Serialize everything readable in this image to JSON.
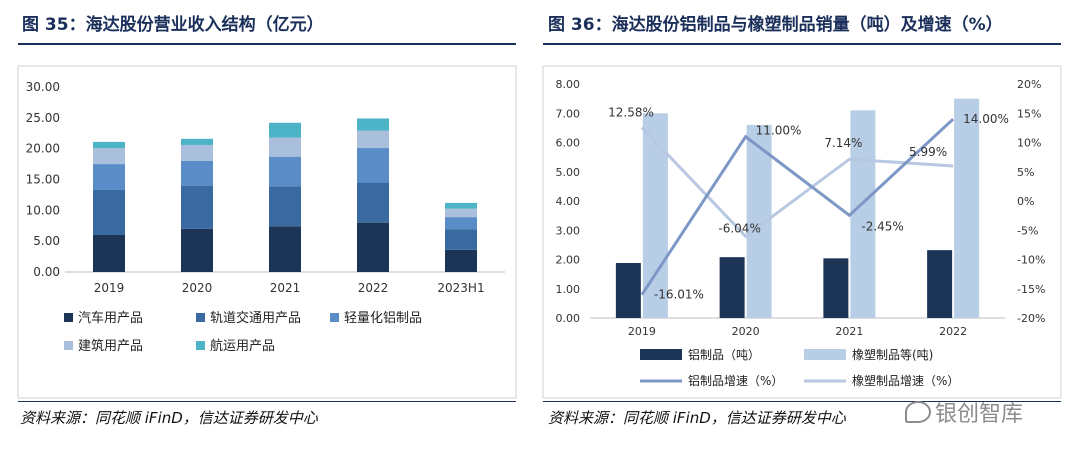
{
  "left": {
    "title": "图 35：海达股份营业收入结构（亿元）",
    "source": "资料来源：同花顺 iFinD，信达证券研发中心",
    "chart_data": {
      "type": "bar",
      "stacked": true,
      "categories": [
        "2019",
        "2020",
        "2021",
        "2022",
        "2023H1"
      ],
      "series": [
        {
          "name": "汽车用产品",
          "color": "#1c3557",
          "values": [
            6.0,
            7.0,
            7.4,
            8.0,
            3.6
          ]
        },
        {
          "name": "轨道交通用产品",
          "color": "#3a6aa0",
          "values": [
            7.3,
            7.0,
            6.5,
            6.5,
            3.3
          ]
        },
        {
          "name": "轻量化铝制品",
          "color": "#5a8cc8",
          "values": [
            4.2,
            4.0,
            4.8,
            5.6,
            2.0
          ]
        },
        {
          "name": "建筑用产品",
          "color": "#a9bfdc",
          "values": [
            2.6,
            2.6,
            3.1,
            2.8,
            1.4
          ]
        },
        {
          "name": "航运用产品",
          "color": "#4db3c6",
          "values": [
            1.0,
            1.0,
            2.4,
            2.0,
            0.9
          ]
        }
      ],
      "ylim": [
        0,
        30
      ],
      "yticks": [
        "0.00",
        "5.00",
        "10.00",
        "15.00",
        "20.00",
        "25.00",
        "30.00"
      ],
      "legend_position": "bottom"
    }
  },
  "right": {
    "title": "图 36：海达股份铝制品与橡塑制品销量（吨）及增速（%）",
    "source": "资料来源：同花顺 iFinD，信达证券研发中心",
    "chart_data": {
      "type": "bar+line",
      "categories": [
        "2019",
        "2020",
        "2021",
        "2022"
      ],
      "bars": [
        {
          "name": "铝制品（吨）",
          "color": "#1c3557",
          "values": [
            1.88,
            2.08,
            2.04,
            2.32
          ]
        },
        {
          "name": "橡塑制品等(吨)",
          "color": "#b8cde6",
          "values": [
            7.0,
            6.6,
            7.1,
            7.5
          ]
        }
      ],
      "lines": [
        {
          "name": "铝制品增速（%）",
          "color": "#7d98c6",
          "values": [
            -16.01,
            11.0,
            -2.45,
            14.0
          ],
          "labels": [
            "-16.01%",
            "11.00%",
            "-2.45%",
            "14.00%"
          ]
        },
        {
          "name": "橡塑制品增速（%）",
          "color": "#b9c8e2",
          "values": [
            12.58,
            -6.04,
            7.14,
            5.99
          ],
          "labels": [
            "12.58%",
            "-6.04%",
            "7.14%",
            "5.99%"
          ]
        }
      ],
      "ylim_left": [
        0,
        8
      ],
      "yticks_left": [
        "0.00",
        "1.00",
        "2.00",
        "3.00",
        "4.00",
        "5.00",
        "6.00",
        "7.00",
        "8.00"
      ],
      "ylim_right": [
        -20,
        20
      ],
      "yticks_right": [
        "-20%",
        "-15%",
        "-10%",
        "-5%",
        "0%",
        "5%",
        "10%",
        "15%",
        "20%"
      ],
      "legend_position": "bottom"
    }
  },
  "watermark": "银创智库"
}
